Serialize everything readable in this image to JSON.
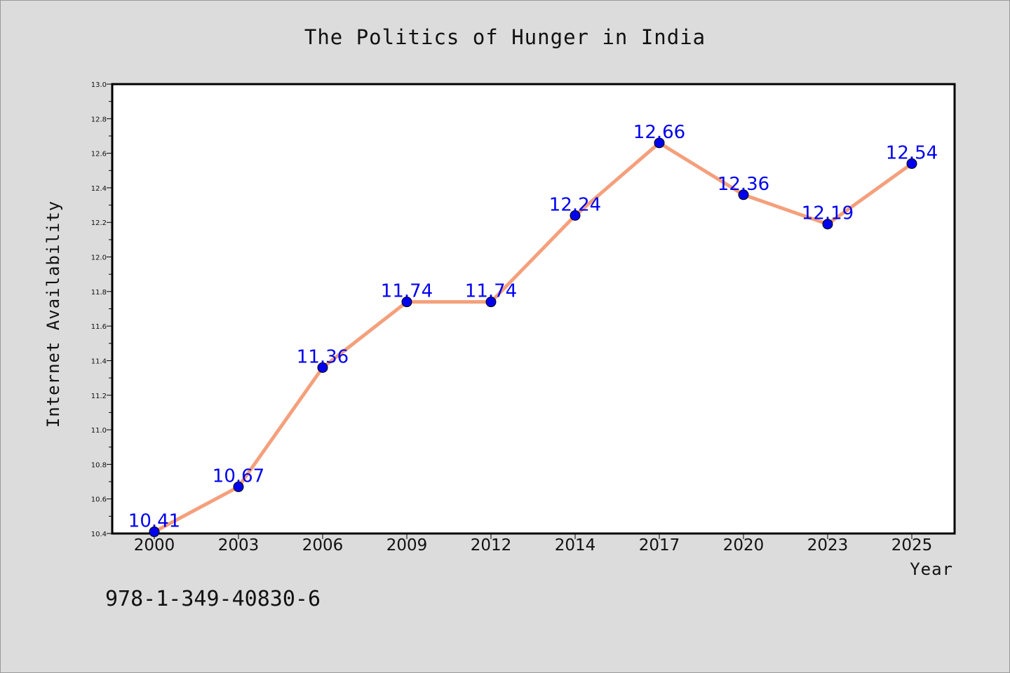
{
  "title": "The Politics of Hunger in India",
  "footer_code": "978-1-349-40830-6",
  "colors": {
    "background": "#dcdcdc",
    "plot_background": "#ffffff",
    "line": "#f4a07c",
    "marker": "#0000ee",
    "label": "#0000ee"
  },
  "chart_data": {
    "type": "line",
    "title": "The Politics of Hunger in India",
    "xlabel": "Year",
    "ylabel": "Internet Availability",
    "categories": [
      "2000",
      "2003",
      "2006",
      "2009",
      "2012",
      "2014",
      "2017",
      "2020",
      "2023",
      "2025"
    ],
    "series": [
      {
        "values": [
          10.41,
          10.67,
          11.36,
          11.74,
          11.74,
          12.24,
          12.66,
          12.36,
          12.19,
          12.54
        ]
      }
    ],
    "data_labels": [
      "10.41",
      "10.67",
      "11.36",
      "11.74",
      "11.74",
      "12.24",
      "12.66",
      "12.36",
      "12.19",
      "12.54"
    ],
    "ylim": [
      10.4,
      13.0
    ],
    "yticks": [
      "10.4",
      "10.6",
      "10.8",
      "11.0",
      "11.2",
      "11.4",
      "11.6",
      "11.8",
      "12.0",
      "12.2",
      "12.4",
      "12.6",
      "12.8",
      "13.0"
    ],
    "grid": false,
    "legend": "none"
  }
}
